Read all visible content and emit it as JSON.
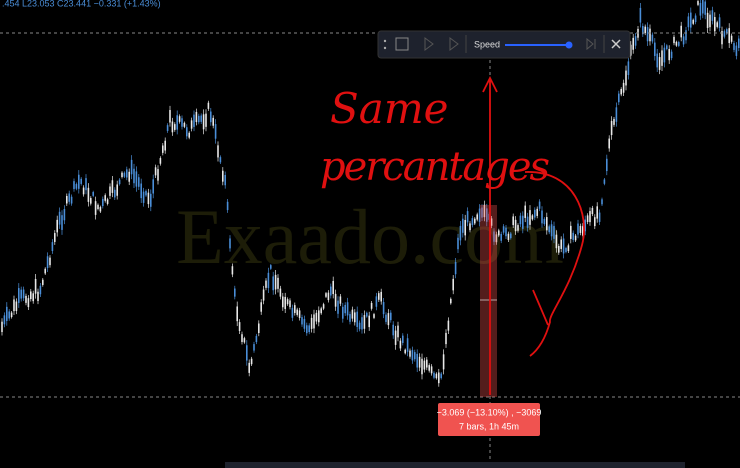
{
  "ohlc_bar": {
    "text": ".454 L23.053 C23.441 −0.331 (+1.43%)"
  },
  "replay_toolbar": {
    "speed_label": "Speed"
  },
  "watermark": "Exaado.com",
  "annotation": {
    "line1": "Same",
    "line2": "percantages"
  },
  "measure": {
    "line1": "−3.069 (−13.10%) , −3069",
    "line2": "7 bars, 1h 45m"
  }
}
